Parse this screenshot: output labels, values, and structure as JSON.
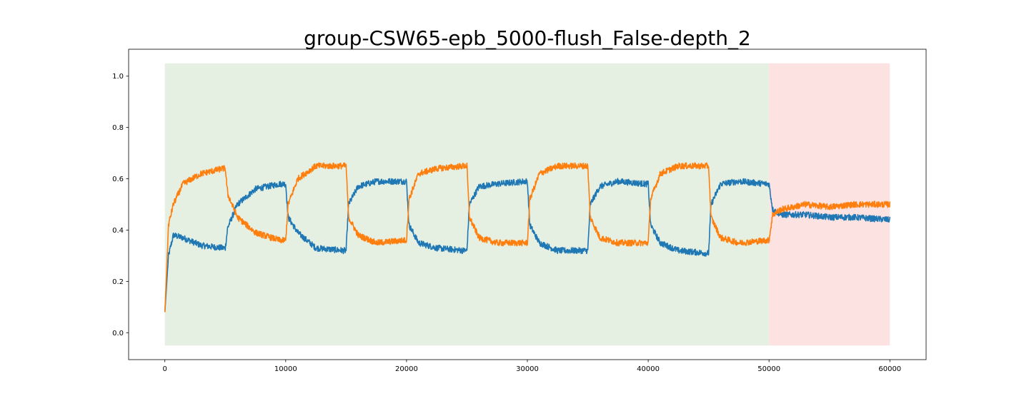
{
  "chart_data": {
    "type": "line",
    "title": "group-CSW65-epb_5000-flush_False-depth_2",
    "xlabel": "",
    "ylabel": "",
    "xlim": [
      -3000,
      63000
    ],
    "ylim": [
      -0.105,
      1.105
    ],
    "x_ticks": [
      0,
      10000,
      20000,
      30000,
      40000,
      50000,
      60000
    ],
    "y_ticks": [
      0.0,
      0.2,
      0.4,
      0.6,
      0.8,
      1.0
    ],
    "y_tick_labels": [
      "0.0",
      "0.2",
      "0.4",
      "0.6",
      "0.8",
      "1.0"
    ],
    "grid": false,
    "shaded_regions": [
      {
        "name": "train-phase",
        "x": [
          0,
          50000
        ],
        "y": [
          -0.05,
          1.05
        ],
        "color": "#e5f0e3"
      },
      {
        "name": "test-phase",
        "x": [
          50000,
          60000
        ],
        "y": [
          -0.05,
          1.05
        ],
        "color": "#fde2e2"
      }
    ],
    "noise_amplitude": 0.012,
    "series": [
      {
        "name": "series-blue",
        "color": "#1f77b4",
        "x": [
          0,
          300,
          700,
          1500,
          3000,
          4800,
          5000,
          5200,
          6000,
          7500,
          9500,
          10000,
          10200,
          11000,
          12500,
          14800,
          15000,
          15200,
          16000,
          17500,
          19800,
          20000,
          20200,
          21000,
          22500,
          24800,
          25000,
          25200,
          26000,
          27500,
          29800,
          30000,
          30200,
          31000,
          32500,
          34800,
          35000,
          35200,
          36000,
          37500,
          39800,
          40000,
          40200,
          41000,
          42500,
          44800,
          45000,
          45200,
          46000,
          47500,
          49800,
          50000,
          50300,
          51000,
          53000,
          55000,
          57000,
          60000
        ],
        "values": [
          0.08,
          0.3,
          0.38,
          0.37,
          0.34,
          0.33,
          0.33,
          0.41,
          0.5,
          0.56,
          0.58,
          0.58,
          0.45,
          0.39,
          0.33,
          0.32,
          0.32,
          0.5,
          0.57,
          0.59,
          0.59,
          0.59,
          0.42,
          0.35,
          0.33,
          0.32,
          0.32,
          0.5,
          0.57,
          0.58,
          0.59,
          0.59,
          0.42,
          0.35,
          0.32,
          0.32,
          0.32,
          0.5,
          0.57,
          0.59,
          0.58,
          0.58,
          0.42,
          0.35,
          0.32,
          0.31,
          0.31,
          0.5,
          0.58,
          0.59,
          0.58,
          0.58,
          0.48,
          0.46,
          0.46,
          0.45,
          0.45,
          0.44
        ]
      },
      {
        "name": "series-orange",
        "color": "#ff7f0e",
        "x": [
          0,
          300,
          700,
          1500,
          3000,
          4800,
          5000,
          5200,
          6000,
          7500,
          9500,
          10000,
          10200,
          11000,
          12500,
          14800,
          15000,
          15200,
          16000,
          17500,
          19800,
          20000,
          20200,
          21000,
          22500,
          24800,
          25000,
          25200,
          26000,
          27500,
          29800,
          30000,
          30200,
          31000,
          32500,
          34800,
          35000,
          35200,
          36000,
          37500,
          39800,
          40000,
          40200,
          41000,
          42500,
          44800,
          45000,
          45200,
          46000,
          47500,
          49800,
          50000,
          50300,
          51000,
          53000,
          55000,
          57000,
          60000
        ],
        "values": [
          0.08,
          0.42,
          0.5,
          0.58,
          0.62,
          0.64,
          0.64,
          0.54,
          0.45,
          0.39,
          0.36,
          0.36,
          0.5,
          0.6,
          0.65,
          0.65,
          0.65,
          0.45,
          0.38,
          0.35,
          0.36,
          0.36,
          0.52,
          0.62,
          0.64,
          0.65,
          0.65,
          0.45,
          0.37,
          0.35,
          0.35,
          0.35,
          0.52,
          0.62,
          0.65,
          0.65,
          0.65,
          0.45,
          0.37,
          0.35,
          0.35,
          0.35,
          0.52,
          0.62,
          0.65,
          0.65,
          0.65,
          0.45,
          0.37,
          0.35,
          0.36,
          0.36,
          0.46,
          0.48,
          0.5,
          0.49,
          0.5,
          0.5
        ]
      }
    ]
  }
}
